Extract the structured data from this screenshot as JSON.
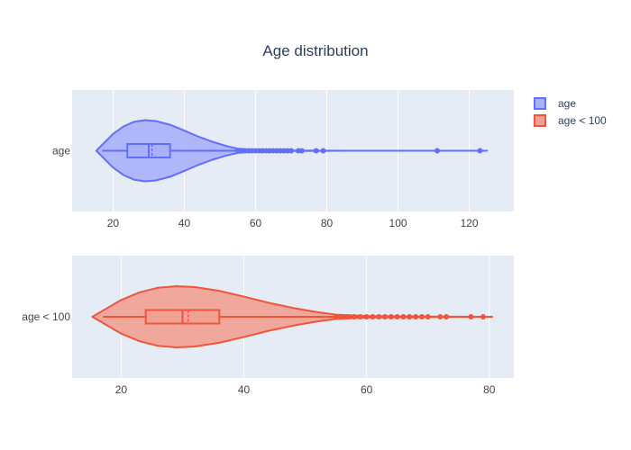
{
  "title": "Age distribution",
  "colors": {
    "plot_bg": "#e5ecf6",
    "grid": "#ffffff",
    "text": "#2a3f5f",
    "tick_text": "#444444"
  },
  "legend": {
    "position": "top-right",
    "items": [
      {
        "label": "age",
        "fill": "#a9b1fb",
        "stroke": "#636efa"
      },
      {
        "label": "age < 100",
        "fill": "#f1a192",
        "stroke": "#ef553b"
      }
    ]
  },
  "chart_data": [
    {
      "type": "violin",
      "series_name": "age",
      "category_label": "age",
      "color": "#636efa",
      "fill": "#a9b1fb",
      "xlim": [
        8.5,
        132.5
      ],
      "xticks": [
        20,
        40,
        60,
        80,
        100,
        120
      ],
      "grid": true,
      "box": {
        "min": 17,
        "q1": 24,
        "median": 30,
        "mean": 30.9,
        "q3": 36,
        "upper_fence": 54.5
      },
      "kde_x": [
        15.3,
        17,
        20,
        23,
        26,
        29,
        32,
        36,
        40,
        44,
        48,
        52,
        55,
        60,
        70,
        80,
        100,
        125
      ],
      "kde_density": [
        0.0,
        0.2,
        0.55,
        0.8,
        0.95,
        1.0,
        0.97,
        0.85,
        0.66,
        0.46,
        0.29,
        0.15,
        0.07,
        0.025,
        0.006,
        0.002,
        0.0005,
        0.0
      ],
      "outliers": [
        55,
        56,
        57,
        58,
        59,
        60,
        61,
        62,
        63,
        64,
        65,
        66,
        67,
        68,
        69,
        70,
        72,
        73,
        77,
        79,
        111,
        123
      ]
    },
    {
      "type": "violin",
      "series_name": "age < 100",
      "category_label": "age < 100",
      "color": "#ef553b",
      "fill": "#f1a192",
      "xlim": [
        12,
        84
      ],
      "xticks": [
        20,
        40,
        60,
        80
      ],
      "grid": true,
      "box": {
        "min": 17,
        "q1": 24,
        "median": 30,
        "mean": 30.9,
        "q3": 36,
        "upper_fence": 54.5
      },
      "kde_x": [
        15.3,
        17,
        20,
        23,
        26,
        29,
        32,
        36,
        40,
        44,
        48,
        52,
        55,
        60,
        70,
        80.5
      ],
      "kde_density": [
        0.0,
        0.2,
        0.55,
        0.8,
        0.95,
        1.0,
        0.97,
        0.85,
        0.66,
        0.46,
        0.29,
        0.15,
        0.07,
        0.025,
        0.006,
        0.0
      ],
      "outliers": [
        55,
        56,
        57,
        58,
        59,
        60,
        61,
        62,
        63,
        64,
        65,
        66,
        67,
        68,
        69,
        70,
        72,
        73,
        77,
        79
      ]
    }
  ]
}
